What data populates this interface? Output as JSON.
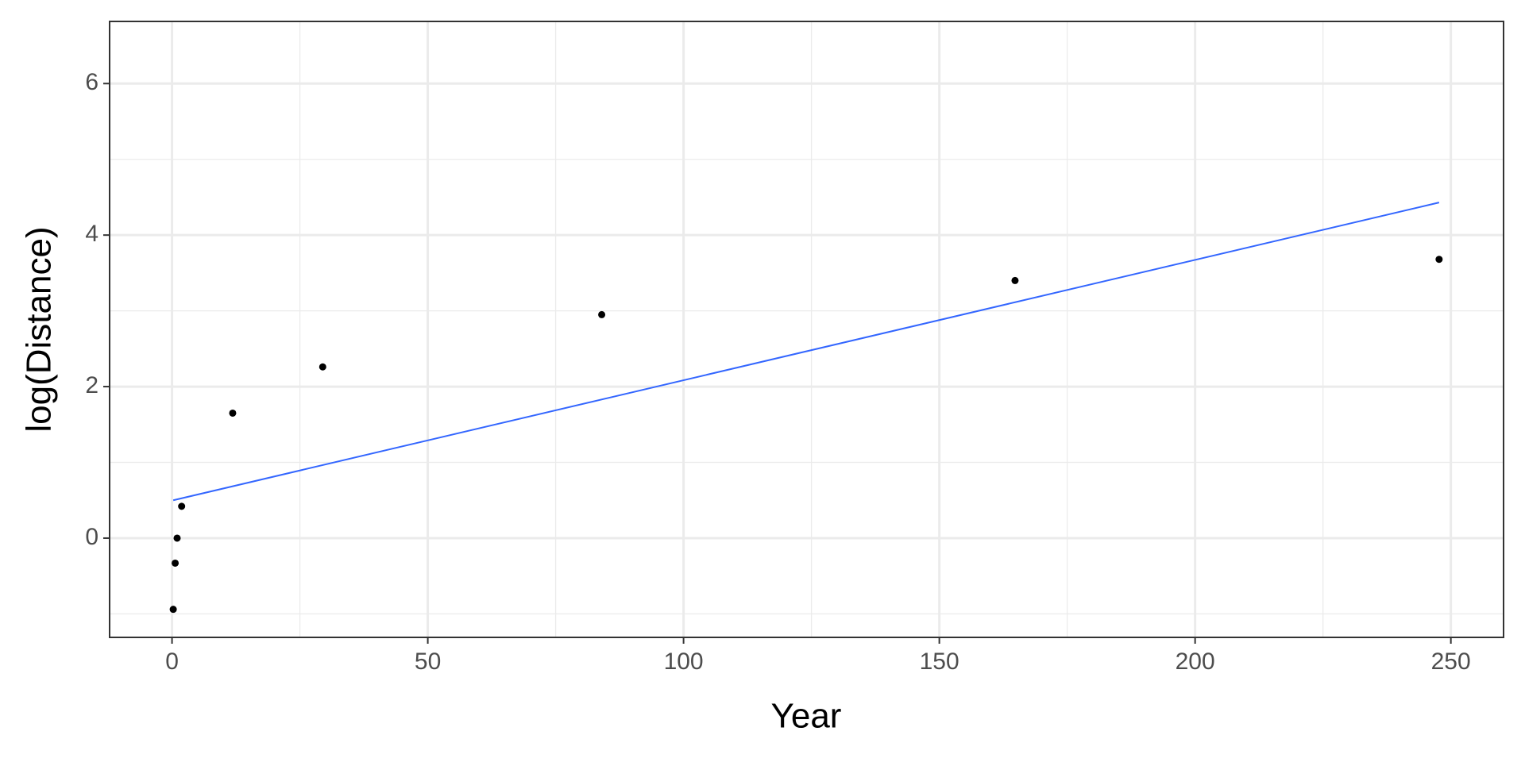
{
  "chart_data": {
    "type": "scatter",
    "x_label": "Year",
    "y_label": "log(Distance)",
    "x": [
      0.24,
      0.62,
      1,
      1.88,
      11.86,
      29.46,
      84,
      164.8,
      247.7
    ],
    "values": [
      -0.94,
      -0.33,
      0,
      0.42,
      1.65,
      2.26,
      2.95,
      3.4,
      3.68
    ],
    "color": "#000000",
    "fit": {
      "x": [
        0.24,
        247.7
      ],
      "values": [
        0.5,
        4.43
      ],
      "color": "#3366ff"
    },
    "xlim": [
      -12.2,
      260.3
    ],
    "ylim": [
      -1.31,
      6.82
    ],
    "xticks": [
      0,
      50,
      100,
      150,
      200,
      250
    ],
    "yticks": [
      0,
      2,
      4,
      6
    ],
    "x_minor_grid": [
      25,
      75,
      125,
      175,
      225
    ],
    "y_minor_grid": [
      -1,
      1,
      3,
      5
    ],
    "grid": true
  }
}
